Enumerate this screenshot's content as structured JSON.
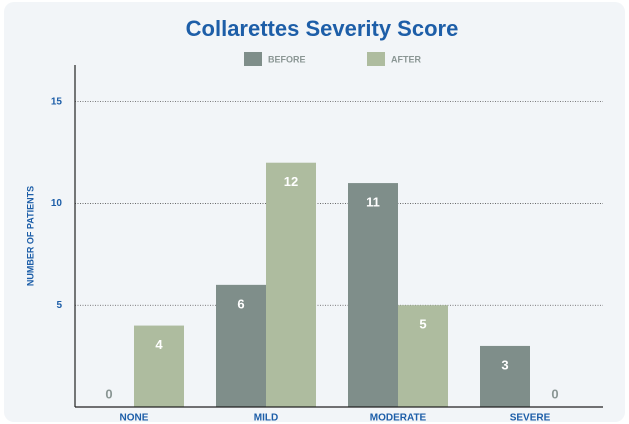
{
  "chart_data": {
    "type": "bar",
    "title": "Collarettes Severity Score",
    "y_label": "NUMBER OF PATIENTS",
    "categories": [
      "NONE",
      "MILD",
      "MODERATE",
      "SEVERE"
    ],
    "series": [
      {
        "name": "BEFORE",
        "color": "#7f8e8a",
        "values": [
          0,
          6,
          11,
          3
        ]
      },
      {
        "name": "AFTER",
        "color": "#aebc9f",
        "values": [
          4,
          12,
          5,
          0
        ]
      }
    ],
    "ylim": [
      0,
      16.8
    ],
    "yticks": [
      5,
      10,
      15
    ],
    "grid": true
  }
}
